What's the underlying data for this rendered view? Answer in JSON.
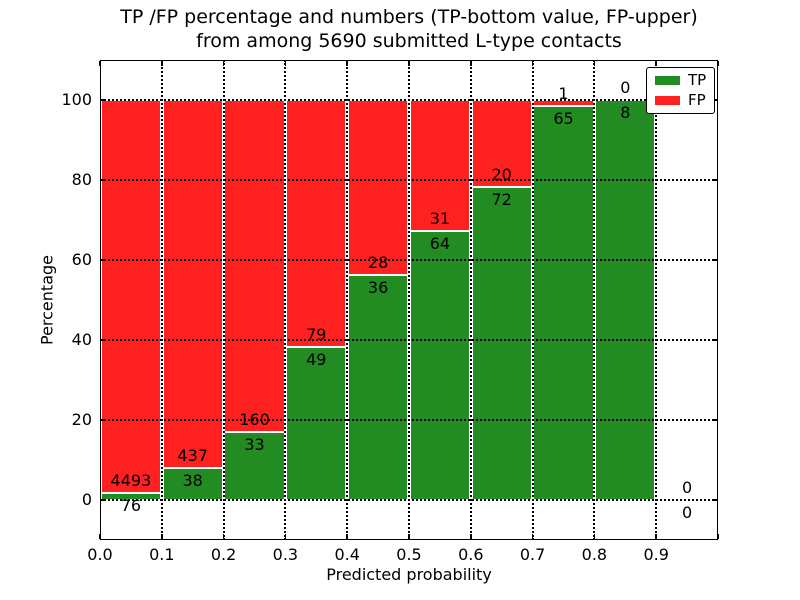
{
  "header": {
    "title_line1": "TP /FP percentage and numbers (TP-bottom value, FP-upper)",
    "title_line2": "from among 5690 submitted L-type contacts"
  },
  "colors": {
    "tp": "#228b22",
    "fp": "#ff2020",
    "text": "#000000",
    "background": "#ffffff"
  },
  "chart_data": {
    "type": "bar",
    "stacked": true,
    "title": "TP /FP percentage and numbers (TP-bottom value, FP-upper)\nfrom among 5690 submitted L-type contacts",
    "xlabel": "Predicted probability",
    "ylabel": "Percentage",
    "total_submitted": 5690,
    "contact_type": "L-type",
    "grid": true,
    "legend_position": "upper right",
    "xlim": [
      0.0,
      1.0
    ],
    "ylim": [
      -10,
      110
    ],
    "bin_edges": [
      0.0,
      0.1,
      0.2,
      0.3,
      0.4,
      0.5,
      0.6,
      0.7,
      0.8,
      0.9,
      1.0
    ],
    "categories": [
      "0.0-0.1",
      "0.1-0.2",
      "0.2-0.3",
      "0.3-0.4",
      "0.4-0.5",
      "0.5-0.6",
      "0.6-0.7",
      "0.7-0.8",
      "0.8-0.9",
      "0.9-1.0"
    ],
    "x_ticks": [
      "0.0",
      "0.1",
      "0.2",
      "0.3",
      "0.4",
      "0.5",
      "0.6",
      "0.7",
      "0.8",
      "0.9"
    ],
    "y_ticks": [
      0,
      20,
      40,
      60,
      80,
      100
    ],
    "series": [
      {
        "name": "TP",
        "color": "#228b22",
        "counts": [
          76,
          38,
          33,
          49,
          36,
          64,
          72,
          65,
          8,
          0
        ],
        "pct": [
          1.66,
          8.0,
          17.1,
          38.28,
          56.25,
          67.37,
          78.26,
          98.48,
          100.0,
          null
        ]
      },
      {
        "name": "FP",
        "color": "#ff2020",
        "counts": [
          4493,
          437,
          160,
          79,
          28,
          31,
          20,
          1,
          0,
          0
        ],
        "pct": [
          98.34,
          92.0,
          82.9,
          61.72,
          43.75,
          32.63,
          21.74,
          1.52,
          0.0,
          null
        ]
      }
    ],
    "legend": [
      {
        "label": "TP",
        "color": "#228b22"
      },
      {
        "label": "FP",
        "color": "#ff2020"
      }
    ]
  }
}
